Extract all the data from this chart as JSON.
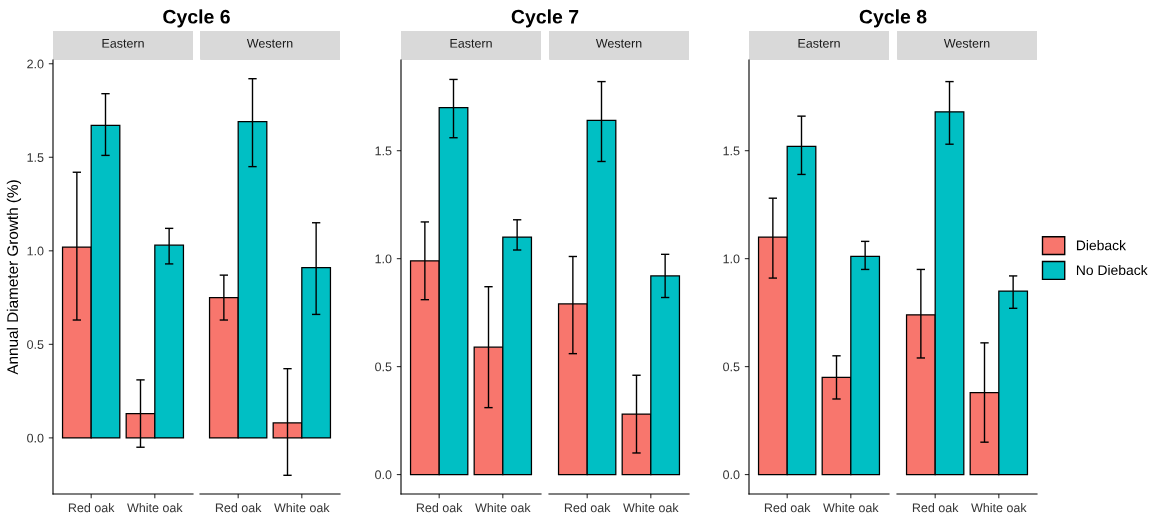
{
  "chart_data": [
    {
      "type": "bar",
      "title": "Cycle 6",
      "subtitle": "Eastern",
      "ylabel": "Annual Diameter Growth (%)",
      "categories": [
        "Red oak",
        "White oak"
      ],
      "series": [
        {
          "name": "Dieback",
          "color": "#f8766d",
          "values": [
            1.02,
            0.13
          ],
          "errors": [
            [
              0.63,
              1.42
            ],
            [
              -0.05,
              0.31
            ]
          ]
        },
        {
          "name": "No Dieback",
          "color": "#00bfc4",
          "values": [
            1.67,
            1.03
          ],
          "errors": [
            [
              1.51,
              1.84
            ],
            [
              0.93,
              1.12
            ]
          ]
        }
      ],
      "ylim": [
        -0.3,
        2.02
      ],
      "yticks": [
        {
          "value": 0,
          "label": "0.0"
        },
        {
          "value": 0.5,
          "label": "0.5"
        },
        {
          "value": 1,
          "label": "1.0"
        },
        {
          "value": 1.5,
          "label": "1.5"
        },
        {
          "value": 2,
          "label": "2.0"
        }
      ],
      "legend": "right"
    },
    {
      "type": "bar",
      "subtitle": "Western",
      "categories": [
        "Red oak",
        "White oak"
      ],
      "series": [
        {
          "color": "#f8766d",
          "values": [
            0.75,
            0.08
          ],
          "errors": [
            [
              0.63,
              0.87
            ],
            [
              -0.2,
              0.37
            ]
          ]
        },
        {
          "color": "#00bfc4",
          "values": [
            1.69,
            0.91
          ],
          "errors": [
            [
              1.45,
              1.92
            ],
            [
              0.66,
              1.15
            ]
          ]
        }
      ],
      "ylim": [
        -0.3,
        2.02
      ],
      "tick_labels": "x"
    },
    {
      "type": "bar",
      "title": "Cycle 7",
      "subtitle": "Eastern",
      "categories": [
        "Red oak",
        "White oak"
      ],
      "series": [
        {
          "color": "#f8766d",
          "values": [
            0.99,
            0.59
          ],
          "errors": [
            [
              0.81,
              1.17
            ],
            [
              0.31,
              0.87
            ]
          ]
        },
        {
          "color": "#00bfc4",
          "values": [
            1.7,
            1.1
          ],
          "errors": [
            [
              1.56,
              1.83
            ],
            [
              1.04,
              1.18
            ]
          ]
        }
      ],
      "ylim": [
        -0.09,
        1.92
      ],
      "yticks": [
        {
          "value": 0,
          "label": "0.0"
        },
        {
          "value": 0.5,
          "label": "0.5"
        },
        {
          "value": 1,
          "label": "1.0"
        },
        {
          "value": 1.5,
          "label": "1.5"
        }
      ]
    },
    {
      "type": "bar",
      "subtitle": "Western",
      "categories": [
        "Red oak",
        "White oak"
      ],
      "series": [
        {
          "color": "#f8766d",
          "values": [
            0.79,
            0.28
          ],
          "errors": [
            [
              0.56,
              1.01
            ],
            [
              0.1,
              0.46
            ]
          ]
        },
        {
          "color": "#00bfc4",
          "values": [
            1.64,
            0.92
          ],
          "errors": [
            [
              1.45,
              1.82
            ],
            [
              0.82,
              1.02
            ]
          ]
        }
      ],
      "ylim": [
        -0.09,
        1.92
      ],
      "tick_labels": "x"
    },
    {
      "type": "bar",
      "title": "Cycle 8",
      "subtitle": "Eastern",
      "categories": [
        "Red oak",
        "White oak"
      ],
      "series": [
        {
          "color": "#f8766d",
          "values": [
            1.1,
            0.45
          ],
          "errors": [
            [
              0.91,
              1.28
            ],
            [
              0.35,
              0.55
            ]
          ]
        },
        {
          "color": "#00bfc4",
          "values": [
            1.52,
            1.01
          ],
          "errors": [
            [
              1.39,
              1.66
            ],
            [
              0.95,
              1.08
            ]
          ]
        }
      ],
      "ylim": [
        -0.09,
        1.92
      ],
      "yticks": [
        {
          "value": 0,
          "label": "0.0"
        },
        {
          "value": 0.5,
          "label": "0.5"
        },
        {
          "value": 1,
          "label": "1.0"
        },
        {
          "value": 1.5,
          "label": "1.5"
        }
      ]
    },
    {
      "type": "bar",
      "subtitle": "Western",
      "categories": [
        "Red oak",
        "White oak"
      ],
      "series": [
        {
          "color": "#f8766d",
          "values": [
            0.74,
            0.38
          ],
          "errors": [
            [
              0.54,
              0.95
            ],
            [
              0.15,
              0.61
            ]
          ]
        },
        {
          "color": "#00bfc4",
          "values": [
            1.68,
            0.85
          ],
          "errors": [
            [
              1.53,
              1.82
            ],
            [
              0.77,
              0.92
            ]
          ]
        }
      ],
      "ylim": [
        -0.09,
        1.92
      ],
      "tick_labels": "x"
    }
  ]
}
